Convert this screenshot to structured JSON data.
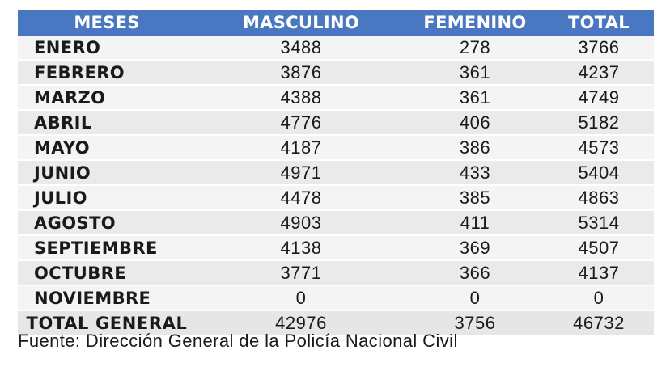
{
  "table": {
    "headers": [
      "MESES",
      "MASCULINO",
      "FEMENINO",
      "TOTAL"
    ],
    "rows": [
      {
        "month": "ENERO",
        "masculino": "3488",
        "femenino": "278",
        "total": "3766"
      },
      {
        "month": "FEBRERO",
        "masculino": "3876",
        "femenino": "361",
        "total": "4237"
      },
      {
        "month": "MARZO",
        "masculino": "4388",
        "femenino": "361",
        "total": "4749"
      },
      {
        "month": "ABRIL",
        "masculino": "4776",
        "femenino": "406",
        "total": "5182"
      },
      {
        "month": "MAYO",
        "masculino": "4187",
        "femenino": "386",
        "total": "4573"
      },
      {
        "month": "JUNIO",
        "masculino": "4971",
        "femenino": "433",
        "total": "5404"
      },
      {
        "month": "JULIO",
        "masculino": "4478",
        "femenino": "385",
        "total": "4863"
      },
      {
        "month": "AGOSTO",
        "masculino": "4903",
        "femenino": "411",
        "total": "5314"
      },
      {
        "month": "SEPTIEMBRE",
        "masculino": "4138",
        "femenino": "369",
        "total": "4507"
      },
      {
        "month": "OCTUBRE",
        "masculino": "3771",
        "femenino": "366",
        "total": "4137"
      },
      {
        "month": "NOVIEMBRE",
        "masculino": "0",
        "femenino": "0",
        "total": "0"
      }
    ],
    "totals": {
      "label": "TOTAL GENERAL",
      "masculino": "42976",
      "femenino": "3756",
      "total": "46732"
    }
  },
  "source": "Fuente: Dirección General de la Policía Nacional Civil",
  "colors": {
    "header_bg": "#4a77c1",
    "header_text": "#ffffff",
    "row_bg_light": "#f4f4f4",
    "row_bg_dark": "#eaeaea"
  }
}
